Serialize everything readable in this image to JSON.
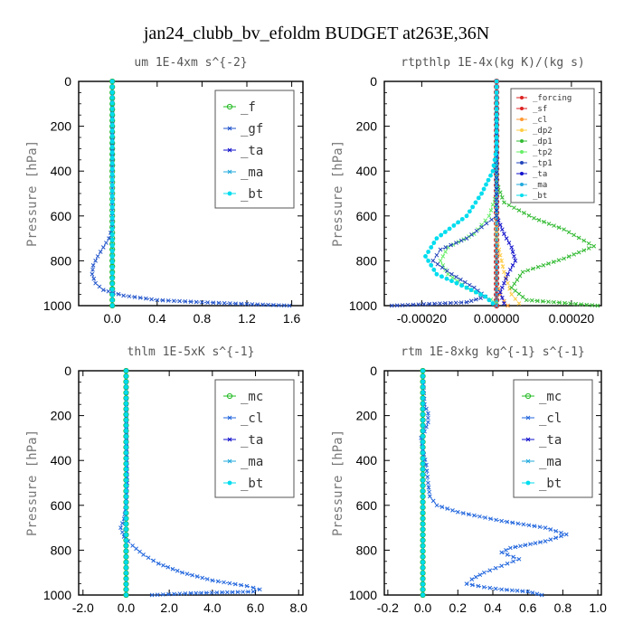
{
  "title": "jan24_clubb_bv_efoldm  BUDGET at263E,36N",
  "colors": {
    "_f": "#22bb22",
    "_gf": "#2255cc",
    "_ta": "#1111cc",
    "_ma": "#22aadd",
    "_bt": "#00ddee",
    "_mc": "#22bb22",
    "_cl": "#2266dd",
    "_forcing": "#dd2222",
    "_sf": "#dd2222",
    "_dp2": "#ffcc44",
    "_dp1": "#33bb33",
    "_tp2": "#66ee66",
    "_tp1": "#2244bb",
    "rt_cl": "#ff9933"
  },
  "chart_data": [
    {
      "type": "line",
      "title": "um   1E-4xm s^{-2}",
      "ylabel": "Pressure [hPa]",
      "xlim": [
        -0.3,
        1.7
      ],
      "ylim": [
        1000,
        0
      ],
      "xticks": [
        "0.0",
        "0.4",
        "0.8",
        "1.2",
        "1.6"
      ],
      "yticks": [
        "0",
        "200",
        "400",
        "600",
        "800",
        "1000"
      ],
      "legend": {
        "position": "top-right",
        "size": "large",
        "entries": [
          "_f",
          "_gf",
          "_ta",
          "_ma",
          "_bt"
        ]
      },
      "series": [
        {
          "name": "_f",
          "points": [
            [
              0,
              0
            ],
            [
              0,
              100
            ],
            [
              0,
              200
            ],
            [
              0,
              300
            ],
            [
              0,
              400
            ],
            [
              0,
              500
            ],
            [
              0,
              600
            ],
            [
              0,
              700
            ],
            [
              0,
              800
            ],
            [
              0,
              900
            ],
            [
              0,
              1000
            ]
          ]
        },
        {
          "name": "_gf",
          "points": [
            [
              0,
              0
            ],
            [
              0,
              500
            ],
            [
              0,
              650
            ],
            [
              -0.03,
              700
            ],
            [
              -0.08,
              740
            ],
            [
              -0.13,
              780
            ],
            [
              -0.17,
              820
            ],
            [
              -0.18,
              860
            ],
            [
              -0.15,
              900
            ],
            [
              -0.08,
              930
            ],
            [
              0.1,
              955
            ],
            [
              0.4,
              975
            ],
            [
              0.8,
              985
            ],
            [
              1.2,
              993
            ],
            [
              1.58,
              1000
            ]
          ]
        },
        {
          "name": "_ta",
          "points": [
            [
              0,
              0
            ],
            [
              0,
              1000
            ]
          ]
        },
        {
          "name": "_ma",
          "points": [
            [
              0,
              0
            ],
            [
              0,
              1000
            ]
          ]
        },
        {
          "name": "_bt",
          "points": [
            [
              0,
              0
            ],
            [
              0,
              1000
            ]
          ]
        }
      ]
    },
    {
      "type": "line",
      "title": "rtpthlp   1E-4x(kg K)/(kg s)",
      "ylabel": "Pressure [hPa]",
      "xlim": [
        -0.0003,
        0.00028
      ],
      "ylim": [
        1000,
        0
      ],
      "xticks": [
        "-0.00020",
        "0.00000",
        "0.00020"
      ],
      "yticks": [
        "0",
        "200",
        "400",
        "600",
        "800",
        "1000"
      ],
      "legend": {
        "position": "top-right",
        "size": "small",
        "entries": [
          "_forcing",
          "_sf",
          "_cl",
          "_dp2",
          "_dp1",
          "_tp2",
          "_tp1",
          "_ta",
          "_ma",
          "_bt"
        ]
      },
      "series": [
        {
          "name": "_forcing",
          "points": [
            [
              0,
              0
            ],
            [
              0,
              1000
            ]
          ]
        },
        {
          "name": "_sf",
          "points": [
            [
              0,
              0
            ],
            [
              0,
              1000
            ]
          ]
        },
        {
          "name": "_cl",
          "points": [
            [
              0,
              0
            ],
            [
              0,
              900
            ],
            [
              1e-05,
              950
            ],
            [
              2e-05,
              980
            ],
            [
              3e-05,
              1000
            ]
          ]
        },
        {
          "name": "_dp2",
          "points": [
            [
              0,
              0
            ],
            [
              0,
              700
            ],
            [
              2e-05,
              850
            ],
            [
              4e-05,
              950
            ],
            [
              6e-05,
              990
            ]
          ]
        },
        {
          "name": "_dp1",
          "points": [
            [
              0,
              0
            ],
            [
              0,
              450
            ],
            [
              2e-05,
              540
            ],
            [
              0.0001,
              610
            ],
            [
              0.00018,
              660
            ],
            [
              0.00026,
              735
            ],
            [
              0.00018,
              790
            ],
            [
              7e-05,
              850
            ],
            [
              4e-05,
              920
            ],
            [
              8e-05,
              975
            ],
            [
              0.00027,
              1000
            ]
          ]
        },
        {
          "name": "_tp2",
          "points": [
            [
              0,
              0
            ],
            [
              0,
              500
            ],
            [
              -2e-05,
              600
            ],
            [
              -6e-05,
              680
            ],
            [
              -0.00013,
              740
            ],
            [
              -0.00015,
              800
            ],
            [
              -0.00013,
              860
            ],
            [
              -8e-05,
              920
            ],
            [
              -3e-05,
              960
            ],
            [
              0,
              985
            ]
          ]
        },
        {
          "name": "_tp1",
          "points": [
            [
              0,
              0
            ],
            [
              0,
              600
            ],
            [
              -4e-05,
              650
            ],
            [
              -8e-05,
              700
            ],
            [
              -0.00015,
              750
            ],
            [
              -0.00017,
              800
            ],
            [
              -0.00012,
              860
            ],
            [
              -6e-05,
              920
            ],
            [
              -3e-05,
              960
            ],
            [
              -8e-05,
              985
            ],
            [
              -0.00028,
              1000
            ]
          ]
        },
        {
          "name": "_ta",
          "points": [
            [
              0,
              0
            ],
            [
              0,
              600
            ],
            [
              2e-05,
              680
            ],
            [
              4e-05,
              740
            ],
            [
              5e-05,
              800
            ],
            [
              3e-05,
              860
            ],
            [
              1e-05,
              940
            ],
            [
              2e-05,
              990
            ]
          ]
        },
        {
          "name": "_ma",
          "points": [
            [
              0,
              0
            ],
            [
              0,
              1000
            ]
          ]
        },
        {
          "name": "_bt",
          "points": [
            [
              0,
              0
            ],
            [
              0,
              300
            ],
            [
              -1e-05,
              400
            ],
            [
              -4e-05,
              500
            ],
            [
              -8e-05,
              600
            ],
            [
              -0.00016,
              700
            ],
            [
              -0.00019,
              780
            ],
            [
              -0.00016,
              860
            ],
            [
              -8e-05,
              920
            ],
            [
              -3e-05,
              960
            ],
            [
              -1e-05,
              990
            ]
          ]
        }
      ]
    },
    {
      "type": "line",
      "title": "thlm   1E-5xK s^{-1}",
      "ylabel": "Pressure [hPa]",
      "xlim": [
        -2.2,
        8.2
      ],
      "ylim": [
        1000,
        0
      ],
      "xticks": [
        "-2.0",
        "0.0",
        "2.0",
        "4.0",
        "6.0",
        "8.0"
      ],
      "yticks": [
        "0",
        "200",
        "400",
        "600",
        "800",
        "1000"
      ],
      "legend": {
        "position": "top-right",
        "size": "large",
        "entries": [
          "_mc",
          "_cl",
          "_ta",
          "_ma",
          "_bt"
        ]
      },
      "series": [
        {
          "name": "_mc",
          "points": [
            [
              0,
              0
            ],
            [
              0,
              1000
            ]
          ]
        },
        {
          "name": "_cl",
          "points": [
            [
              0,
              0
            ],
            [
              0.02,
              300
            ],
            [
              0.05,
              500
            ],
            [
              0,
              600
            ],
            [
              -0.1,
              660
            ],
            [
              -0.25,
              700
            ],
            [
              -0.1,
              740
            ],
            [
              0.3,
              780
            ],
            [
              0.8,
              820
            ],
            [
              1.5,
              860
            ],
            [
              2.6,
              900
            ],
            [
              4,
              935
            ],
            [
              5.6,
              960
            ],
            [
              6.2,
              975
            ],
            [
              5.9,
              985
            ],
            [
              3,
              992
            ],
            [
              1.2,
              1000
            ]
          ]
        },
        {
          "name": "_ta",
          "points": [
            [
              0,
              0
            ],
            [
              0,
              1000
            ]
          ]
        },
        {
          "name": "_ma",
          "points": [
            [
              0,
              0
            ],
            [
              0,
              1000
            ]
          ]
        },
        {
          "name": "_bt",
          "points": [
            [
              0,
              0
            ],
            [
              0,
              1000
            ]
          ]
        }
      ]
    },
    {
      "type": "line",
      "title": "rtm   1E-8xkg kg^{-1} s^{-1}",
      "ylabel": "Pressure [hPa]",
      "xlim": [
        -0.22,
        1.02
      ],
      "ylim": [
        1000,
        0
      ],
      "xticks": [
        "-0.2",
        "0.0",
        "0.2",
        "0.4",
        "0.6",
        "0.8",
        "1.0"
      ],
      "yticks": [
        "0",
        "200",
        "400",
        "600",
        "800",
        "1000"
      ],
      "legend": {
        "position": "top-right",
        "size": "large",
        "entries": [
          "_mc",
          "_cl",
          "_ta",
          "_ma",
          "_bt"
        ]
      },
      "series": [
        {
          "name": "_mc",
          "points": [
            [
              0,
              0
            ],
            [
              0,
              1000
            ]
          ]
        },
        {
          "name": "_cl",
          "points": [
            [
              0,
              0
            ],
            [
              0.01,
              150
            ],
            [
              0.03,
              190
            ],
            [
              0.03,
              230
            ],
            [
              0.01,
              270
            ],
            [
              -0.01,
              300
            ],
            [
              0,
              350
            ],
            [
              0.02,
              420
            ],
            [
              0.03,
              500
            ],
            [
              0.04,
              560
            ],
            [
              0.08,
              600
            ],
            [
              0.2,
              630
            ],
            [
              0.45,
              670
            ],
            [
              0.7,
              700
            ],
            [
              0.82,
              730
            ],
            [
              0.7,
              760
            ],
            [
              0.5,
              790
            ],
            [
              0.45,
              810
            ],
            [
              0.55,
              840
            ],
            [
              0.45,
              870
            ],
            [
              0.35,
              900
            ],
            [
              0.28,
              930
            ],
            [
              0.25,
              950
            ],
            [
              0.35,
              965
            ],
            [
              0.45,
              975
            ],
            [
              0.6,
              985
            ],
            [
              0.68,
              1000
            ]
          ]
        },
        {
          "name": "_ta",
          "points": [
            [
              0,
              0
            ],
            [
              0,
              1000
            ]
          ]
        },
        {
          "name": "_ma",
          "points": [
            [
              0,
              0
            ],
            [
              0,
              1000
            ]
          ]
        },
        {
          "name": "_bt",
          "points": [
            [
              0,
              0
            ],
            [
              0,
              1000
            ]
          ]
        }
      ]
    }
  ]
}
